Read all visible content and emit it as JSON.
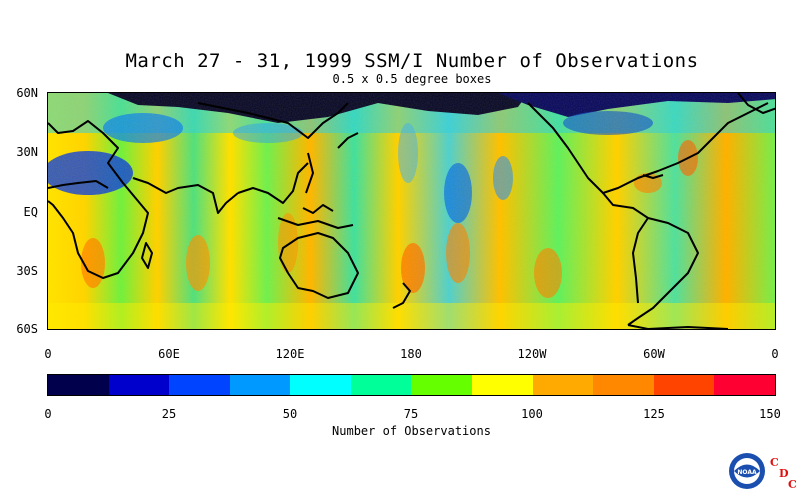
{
  "title": "March 27 - 31, 1999 SSM/I Number of Observations",
  "subtitle": "0.5 x 0.5 degree boxes",
  "y_axis_labels": [
    "60N",
    "30N",
    "EQ",
    "30S",
    "60S"
  ],
  "x_axis_labels": [
    "0",
    "60E",
    "120E",
    "180",
    "120W",
    "60W",
    "0"
  ],
  "colorbar": {
    "title": "Number of Observations",
    "tick_labels": [
      "0",
      "25",
      "50",
      "75",
      "100",
      "125",
      "150"
    ],
    "colors": [
      "#00004c",
      "#0000cc",
      "#0044ff",
      "#0099ff",
      "#00ffff",
      "#00ff99",
      "#66ff00",
      "#ffff00",
      "#ffaa00",
      "#ff8800",
      "#ff4400",
      "#ff0033"
    ]
  },
  "logo": {
    "name": "NOAA",
    "cdc": [
      "C",
      "D",
      "C"
    ]
  },
  "chart_data": {
    "type": "heatmap",
    "title": "March 27 - 31, 1999 SSM/I Number of Observations",
    "subtitle": "0.5 x 0.5 degree boxes",
    "x_range": [
      "0",
      "0"
    ],
    "y_range": [
      "60S",
      "60N"
    ],
    "color_scale": {
      "min": 0,
      "max": 150,
      "step": 12.5,
      "label": "Number of Observations"
    }
  }
}
